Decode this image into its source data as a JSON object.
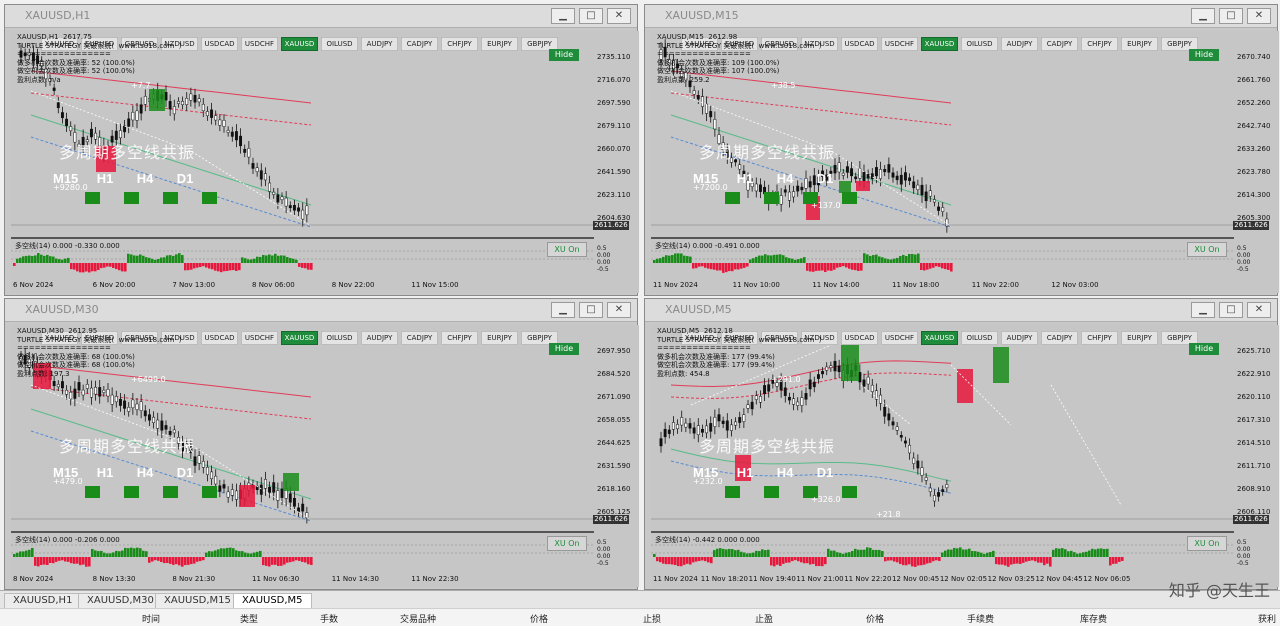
{
  "symbols": [
    "XAUUSD",
    "EURUSD",
    "GBPUSD",
    "NZDUSD",
    "USDCAD",
    "USDCHF",
    "XAUUSD",
    "OILUSD",
    "AUDJPY",
    "CADJPY",
    "CHFJPY",
    "EURJPY",
    "GBPJPY"
  ],
  "active_symbol_index": 6,
  "strategy_title": "TURTLE STRATEGY 突破系统(  www.ts018.com  )",
  "watermark": "多周期多空线共振",
  "timeframes": [
    "M15",
    "H1",
    "H4",
    "D1"
  ],
  "hide_label": "Hide",
  "xu_label": "XU On",
  "windows": [
    {
      "title": "XAUUSD,H1",
      "symbol_line": "XAUUSD,H1  2617.75",
      "stats": [
        "做多机会次数及准确率: 52 (100.0%)",
        "做空机会次数及准确率: 52 (100.0%)",
        "盈利点数: n/a"
      ],
      "prices": [
        "2735.110",
        "2716.070",
        "2697.590",
        "2679.110",
        "2660.070",
        "2641.590",
        "2623.110",
        "2604.630"
      ],
      "current_price": "2611.626",
      "indicator": "多空线(14) 0.000 -0.330 0.000",
      "ind_scale": [
        "0.5",
        "0.00",
        "0.00",
        "-0.5"
      ],
      "times": [
        "6 Nov 2024",
        "6 Nov 20:00",
        "7 Nov 13:00",
        "8 Nov 06:00",
        "8 Nov 22:00",
        "11 Nov 15:00"
      ],
      "labels": [
        "+9280.0",
        "+7.7"
      ]
    },
    {
      "title": "XAUUSD,M15",
      "symbol_line": "XAUUSD,M15  2612.98",
      "stats": [
        "做多机会次数及准确率: 109 (100.0%)",
        "做空机会次数及准确率: 107 (100.0%)",
        "盈利点数: 259.2"
      ],
      "prices": [
        "2670.740",
        "2661.760",
        "2652.260",
        "2642.740",
        "2633.260",
        "2623.780",
        "2614.300",
        "2605.300"
      ],
      "current_price": "2611.626",
      "indicator": "多空线(14) 0.000 -0.491 0.000",
      "ind_scale": [
        "0.5",
        "0.00",
        "0.00",
        "-0.5"
      ],
      "times": [
        "11 Nov 2024",
        "11 Nov 10:00",
        "11 Nov 14:00",
        "11 Nov 18:00",
        "11 Nov 22:00",
        "12 Nov 03:00"
      ],
      "labels": [
        "+7200.0",
        "+38.5",
        "+137.0"
      ]
    },
    {
      "title": "XAUUSD,M30",
      "symbol_line": "XAUUSD,M30  2612.95",
      "stats": [
        "做多机会次数及准确率: 68 (100.0%)",
        "做空机会次数及准确率: 68 (100.0%)",
        "盈利点数: 197.3"
      ],
      "prices": [
        "2697.950",
        "2684.520",
        "2671.090",
        "2658.055",
        "2644.625",
        "2631.590",
        "2618.160",
        "2605.125"
      ],
      "current_price": "2611.626",
      "indicator": "多空线(14) 0.000 -0.206 0.000",
      "ind_scale": [
        "0.5",
        "0.00",
        "0.00",
        "-0.5"
      ],
      "times": [
        "8 Nov 2024",
        "8 Nov 13:30",
        "8 Nov 21:30",
        "11 Nov 06:30",
        "11 Nov 14:30",
        "11 Nov 22:30"
      ],
      "labels": [
        "+479.0",
        "+6499.0"
      ]
    },
    {
      "title": "XAUUSD,M5",
      "symbol_line": "XAUUSD,M5  2612.18",
      "stats": [
        "做多机会次数及准确率: 177 (99.4%)",
        "做空机会次数及准确率: 177 (99.4%)",
        "盈利点数: 454.8"
      ],
      "prices": [
        "2625.710",
        "2622.910",
        "2620.110",
        "2617.310",
        "2614.510",
        "2611.710",
        "2608.910",
        "2606.110"
      ],
      "current_price": "2611.626",
      "indicator": "多空线(14) -0.442 0.000 0.000",
      "ind_scale": [
        "0.5",
        "0.00",
        "0.00",
        "-0.5"
      ],
      "times": [
        "11 Nov 2024",
        "11 Nov 18:20",
        "11 Nov 19:40",
        "11 Nov 21:00",
        "11 Nov 22:20",
        "12 Nov 00:45",
        "12 Nov 02:05",
        "12 Nov 03:25",
        "12 Nov 04:45",
        "12 Nov 06:05"
      ],
      "labels": [
        "+232.0",
        "+291.0",
        "+326.0",
        "+21.8"
      ]
    }
  ],
  "tabs": [
    "XAUUSD,H1",
    "XAUUSD,M30",
    "XAUUSD,M15",
    "XAUUSD,M5"
  ],
  "active_tab": 3,
  "columns": [
    "时间",
    "类型",
    "手数",
    "交易品种",
    "价格",
    "止损",
    "止盈",
    "价格",
    "手续费",
    "库存费",
    "获利"
  ],
  "corner_watermark": "知乎 @天生王",
  "colors": {
    "bull": "#1a8c1a",
    "bear": "#e8183c",
    "active": "#1e8c3a"
  }
}
